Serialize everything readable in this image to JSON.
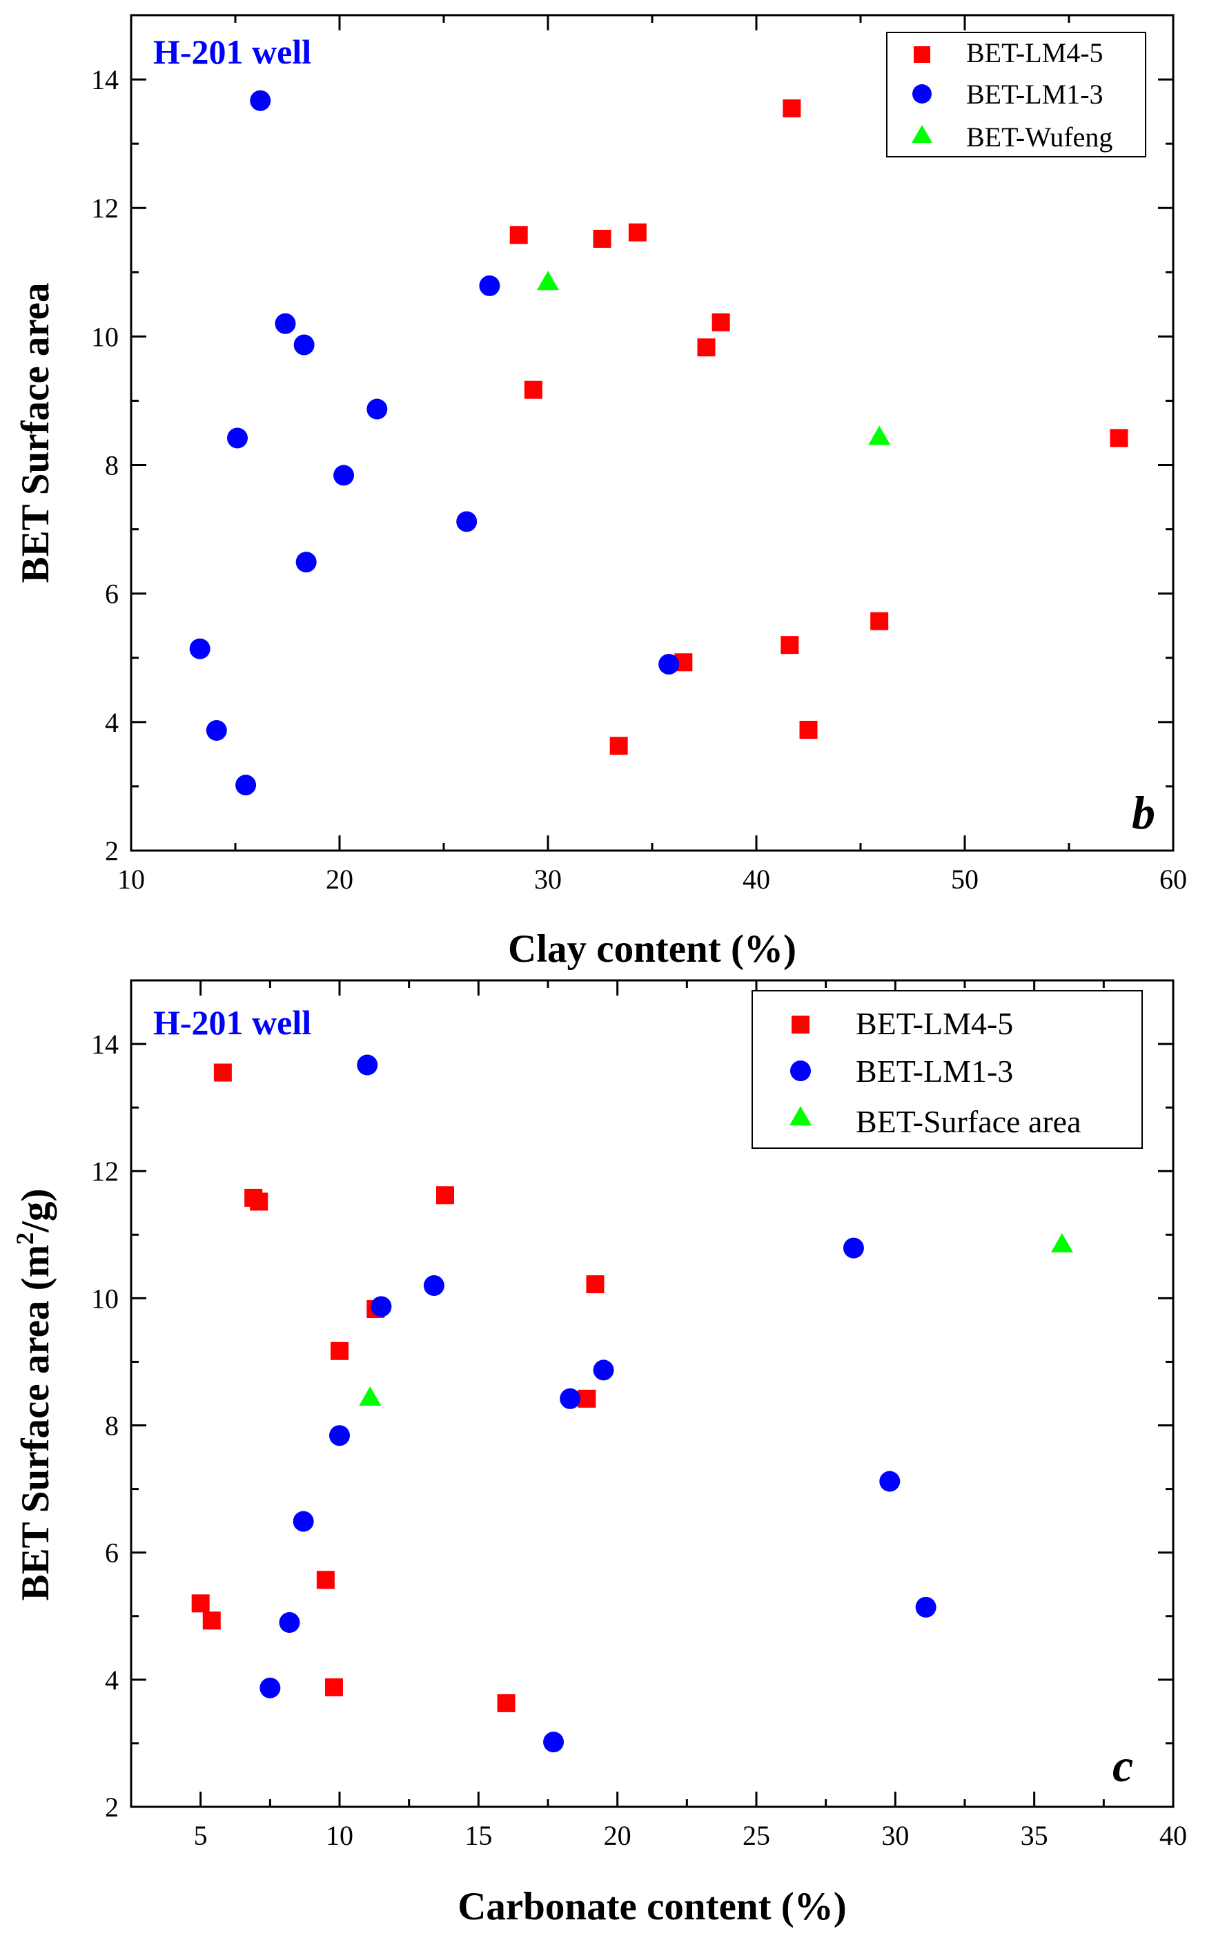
{
  "chart_data": [
    {
      "panel_label": "b",
      "type": "scatter",
      "well_label": "H-201 well",
      "xlabel": "Clay content (%)",
      "ylabel": "BET Surface area",
      "xlim": [
        10,
        60
      ],
      "ylim": [
        2,
        15
      ],
      "xticks": [
        10,
        20,
        30,
        40,
        50,
        60
      ],
      "yticks": [
        2,
        4,
        6,
        8,
        10,
        12,
        14
      ],
      "legend_position": "top-right",
      "series": [
        {
          "name": "BET-LM4-5",
          "marker": "square",
          "color": "#ff0000",
          "x": [
            41.7,
            28.6,
            32.6,
            34.3,
            38.3,
            37.6,
            29.3,
            57.4,
            45.9,
            41.6,
            36.5,
            33.4,
            42.5
          ],
          "y": [
            13.55,
            11.58,
            11.52,
            11.62,
            10.22,
            9.83,
            9.17,
            8.42,
            5.57,
            5.2,
            4.93,
            3.63,
            3.88
          ]
        },
        {
          "name": "BET-LM1-3",
          "marker": "circle",
          "color": "#0000ff",
          "x": [
            16.2,
            27.2,
            17.4,
            18.3,
            21.8,
            15.1,
            20.2,
            26.1,
            18.4,
            13.3,
            14.1,
            15.5,
            35.8
          ],
          "y": [
            13.67,
            10.79,
            10.2,
            9.87,
            8.87,
            8.42,
            7.84,
            7.12,
            6.49,
            5.14,
            3.87,
            3.02,
            4.9
          ]
        },
        {
          "name": "BET-Wufeng",
          "marker": "triangle",
          "color": "#00ff00",
          "x": [
            30.0,
            45.9
          ],
          "y": [
            10.84,
            8.43
          ]
        }
      ]
    },
    {
      "panel_label": "c",
      "type": "scatter",
      "well_label": "H-201 well",
      "xlabel": "Carbonate content (%)",
      "ylabel_prefix": "BET Surface area (m",
      "ylabel_sup": "2",
      "ylabel_suffix": "/g)",
      "xlim": [
        2.5,
        40
      ],
      "ylim": [
        2,
        15
      ],
      "xticks": [
        5,
        10,
        15,
        20,
        25,
        30,
        35,
        40
      ],
      "yticks": [
        2,
        4,
        6,
        8,
        10,
        12,
        14
      ],
      "legend_position": "top-right",
      "series": [
        {
          "name": "BET-LM4-5",
          "marker": "square",
          "color": "#ff0000",
          "x": [
            5.8,
            6.9,
            7.1,
            13.8,
            19.2,
            11.3,
            10.0,
            18.9,
            9.5,
            5.0,
            5.4,
            16.0,
            9.8
          ],
          "y": [
            13.55,
            11.58,
            11.52,
            11.62,
            10.22,
            9.83,
            9.17,
            8.42,
            5.57,
            5.2,
            4.93,
            3.63,
            3.88
          ]
        },
        {
          "name": "BET-LM1-3",
          "marker": "circle",
          "color": "#0000ff",
          "x": [
            11.0,
            28.5,
            13.4,
            11.5,
            19.5,
            18.3,
            10.0,
            29.8,
            8.7,
            31.1,
            7.5,
            17.7,
            8.2
          ],
          "y": [
            13.67,
            10.79,
            10.2,
            9.87,
            8.87,
            8.42,
            7.84,
            7.12,
            6.49,
            5.14,
            3.87,
            3.02,
            4.9
          ]
        },
        {
          "name": "BET-Surface area",
          "marker": "triangle",
          "color": "#00ff00",
          "x": [
            36.0,
            11.1
          ],
          "y": [
            10.84,
            8.43
          ]
        }
      ]
    }
  ]
}
